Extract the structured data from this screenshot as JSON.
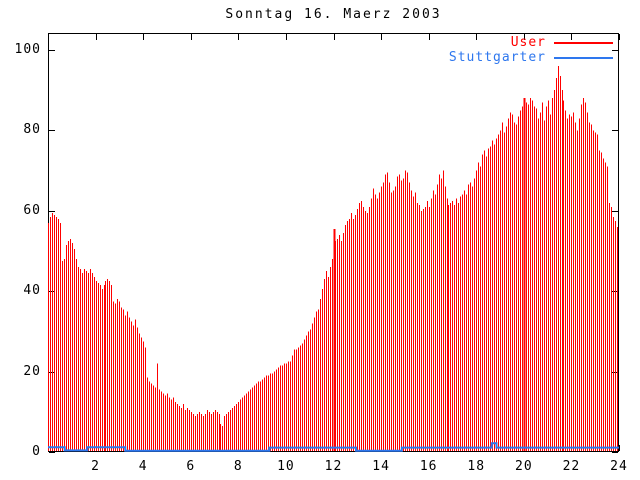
{
  "chart_data": {
    "type": "bar",
    "title": "Sonntag 16. Maerz 2003",
    "x_unit": "hour of day",
    "x_range": [
      0,
      24
    ],
    "y_range": [
      0,
      100
    ],
    "grid": false,
    "legend_position": "top-right-inside",
    "background_color": "#ffffff",
    "axis_color": "#000000",
    "x_ticks": [
      2,
      4,
      6,
      8,
      10,
      12,
      14,
      16,
      18,
      20,
      22,
      24
    ],
    "x_tick_labels": [
      "2",
      "4",
      "6",
      "8",
      "10",
      "12",
      "14",
      "16",
      "18",
      "20",
      "22",
      "24"
    ],
    "y_ticks": [
      0,
      20,
      40,
      60,
      80,
      100
    ],
    "y_tick_labels": [
      "0",
      "20",
      "40",
      "60",
      "80",
      "100"
    ],
    "sample_interval_minutes": 5,
    "thick_bar_hours": [
      12,
      20
    ],
    "series": [
      {
        "name": "User",
        "color": "#ff0000",
        "style": "impulses",
        "values": [
          57,
          58.5,
          59.5,
          59,
          58.5,
          58,
          57,
          47.5,
          48,
          51.5,
          52.5,
          53,
          52,
          50.5,
          48,
          46,
          45.5,
          44.5,
          45.5,
          45,
          44.5,
          45.5,
          44.5,
          43.5,
          42.5,
          42,
          41.5,
          40.5,
          41.5,
          42.5,
          43,
          42.5,
          41.5,
          37.5,
          37,
          38,
          37.5,
          36,
          35.5,
          34,
          35,
          33.5,
          32.5,
          31.5,
          33,
          31,
          29.5,
          28.5,
          27.5,
          26,
          18.5,
          17.5,
          17,
          16.5,
          16,
          22,
          15.5,
          15,
          14.5,
          14,
          14.5,
          13.5,
          13,
          13.5,
          12.5,
          12,
          11.5,
          11,
          12,
          10.5,
          11,
          10.5,
          10,
          9.5,
          9,
          9.5,
          10,
          9.5,
          9,
          9.5,
          10.5,
          10,
          9.5,
          10,
          10.5,
          10,
          9.5,
          7,
          6.5,
          9,
          9.5,
          10,
          10.5,
          11,
          11.5,
          12,
          12.5,
          13,
          13.5,
          14,
          14.5,
          15,
          15.5,
          16,
          16.5,
          17,
          17.5,
          17.5,
          18,
          18.5,
          19,
          19,
          19.5,
          19.5,
          20,
          20.5,
          21,
          21.5,
          21.5,
          22,
          22,
          22.5,
          22.5,
          24,
          25.5,
          25.5,
          26,
          26.5,
          27,
          28,
          29,
          30,
          30.5,
          32,
          33.5,
          35,
          35.5,
          38,
          40.5,
          43,
          45,
          43.5,
          46,
          48,
          55.5,
          52.5,
          53,
          54,
          52.5,
          54.5,
          56.5,
          57.5,
          58,
          59.5,
          58,
          59,
          60.5,
          62,
          62.5,
          61,
          60,
          59.5,
          61,
          63,
          65.5,
          64,
          63,
          64.5,
          66,
          67,
          69,
          69.5,
          67,
          64.5,
          65,
          66,
          68.5,
          69,
          67.5,
          68,
          70,
          69.5,
          67,
          65,
          63.5,
          64.5,
          62,
          61.5,
          60,
          60.5,
          61,
          62.5,
          61,
          63,
          65,
          64,
          66.5,
          69,
          68,
          70,
          66,
          63,
          61.5,
          62,
          62.5,
          61.5,
          63,
          62,
          63.5,
          64,
          65,
          64,
          66.5,
          67,
          66,
          68,
          70,
          72,
          71,
          74,
          75,
          73.5,
          75.5,
          76,
          77.5,
          76.5,
          78,
          79,
          80,
          82,
          79.5,
          81,
          83,
          84.5,
          84,
          82,
          81.5,
          83.5,
          85,
          86,
          88,
          87,
          86.5,
          88,
          87.5,
          86,
          85.5,
          83,
          84.5,
          87,
          82.5,
          86,
          87.5,
          84,
          88,
          90,
          93,
          96,
          93.5,
          90,
          87.5,
          85,
          83,
          84,
          83.5,
          84.5,
          82,
          80,
          83,
          86.5,
          88,
          87,
          84.5,
          82,
          81.5,
          80,
          79.5,
          79,
          75,
          74.5,
          73,
          72,
          71,
          62,
          61,
          58.5,
          57.5,
          56
        ]
      },
      {
        "name": "Stuttgarter",
        "color": "#2e77ee",
        "style": "steps",
        "segments": [
          [
            0,
            0.7,
            1.2
          ],
          [
            0.7,
            1.65,
            0.4
          ],
          [
            1.65,
            3.25,
            1.2
          ],
          [
            3.25,
            9.3,
            0.3
          ],
          [
            9.3,
            12.95,
            1.1
          ],
          [
            12.95,
            14.87,
            0.3
          ],
          [
            14.87,
            18.65,
            1.1
          ],
          [
            18.65,
            18.85,
            2.2
          ],
          [
            18.85,
            24,
            1.1
          ]
        ]
      }
    ]
  }
}
